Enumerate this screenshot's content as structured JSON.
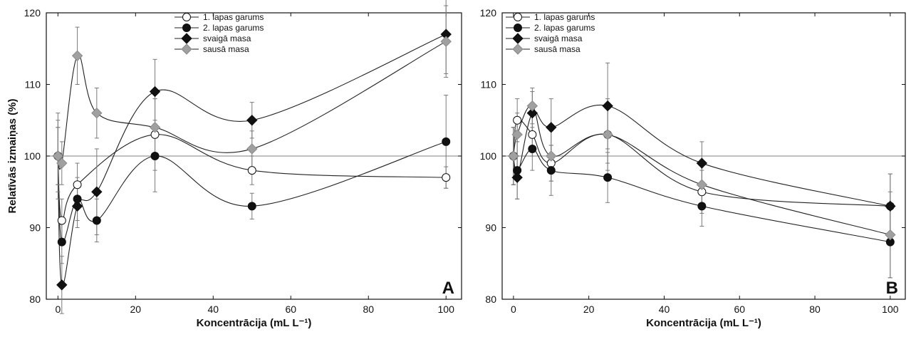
{
  "chart_data": [
    {
      "type": "scatter",
      "panel_label": "A",
      "xlabel": "Koncentrācija (mL L⁻¹)",
      "ylabel": "Relatīvās izmaiņas (%)",
      "xlim": [
        -3,
        104
      ],
      "ylim": [
        80,
        120
      ],
      "xticks": [
        0,
        20,
        40,
        60,
        80,
        100
      ],
      "yticks": [
        80,
        90,
        100,
        110,
        120
      ],
      "reference_line": 100,
      "legend_position": "top-center",
      "series": [
        {
          "name": "1. lapas garums",
          "marker": "circle-open",
          "color": "#ffffff",
          "x": [
            0,
            1,
            5,
            25,
            50,
            100
          ],
          "y": [
            100,
            91,
            96,
            103,
            98,
            97
          ],
          "err": [
            4,
            3,
            3,
            5,
            2,
            1.5
          ]
        },
        {
          "name": "2. lapas garums",
          "marker": "circle",
          "color": "#111111",
          "x": [
            0,
            1,
            5,
            10,
            25,
            50,
            100
          ],
          "y": [
            100,
            88,
            94,
            91,
            100,
            93,
            102
          ],
          "err": [
            4,
            3,
            3,
            3,
            5,
            1.8,
            6.5
          ]
        },
        {
          "name": "svaigā masa",
          "marker": "diamond",
          "color": "#111111",
          "x": [
            0,
            1,
            5,
            10,
            25,
            50,
            100
          ],
          "y": [
            100,
            82,
            93,
            95,
            109,
            105,
            117
          ],
          "err": [
            6,
            4,
            3,
            6,
            4.5,
            2.5,
            5.5
          ]
        },
        {
          "name": "sausā masa",
          "marker": "diamond",
          "color": "#a0a0a0",
          "x": [
            0,
            1,
            5,
            10,
            25,
            50,
            100
          ],
          "y": [
            100,
            99,
            114,
            106,
            104,
            101,
            116
          ],
          "err": [
            5,
            3,
            4,
            3.5,
            4,
            2.5,
            5
          ]
        }
      ]
    },
    {
      "type": "scatter",
      "panel_label": "B",
      "xlabel": "Koncentrācija (mL L⁻¹)",
      "ylabel": "",
      "xlim": [
        -3,
        104
      ],
      "ylim": [
        80,
        120
      ],
      "xticks": [
        0,
        20,
        40,
        60,
        80,
        100
      ],
      "yticks": [
        80,
        90,
        100,
        110,
        120
      ],
      "reference_line": 100,
      "legend_position": "top-left",
      "series": [
        {
          "name": "1. lapas garums",
          "marker": "circle-open",
          "color": "#ffffff",
          "x": [
            0,
            1,
            5,
            10,
            25,
            50,
            100
          ],
          "y": [
            100,
            105,
            103,
            99,
            103,
            95,
            93
          ],
          "err": [
            4,
            3,
            3,
            2.5,
            5,
            3,
            4.5
          ]
        },
        {
          "name": "2. lapas garums",
          "marker": "circle",
          "color": "#111111",
          "x": [
            0,
            1,
            5,
            10,
            25,
            50,
            100
          ],
          "y": [
            100,
            98,
            101,
            98,
            97,
            93,
            88
          ],
          "err": [
            4,
            4,
            3,
            3.5,
            3.5,
            2.8,
            5
          ]
        },
        {
          "name": "svaigā masa",
          "marker": "diamond",
          "color": "#111111",
          "x": [
            0,
            1,
            5,
            10,
            25,
            50,
            100
          ],
          "y": [
            100,
            97,
            106,
            104,
            107,
            99,
            93
          ],
          "err": [
            4,
            3,
            3,
            4,
            6,
            3,
            4.5
          ]
        },
        {
          "name": "sausā masa",
          "marker": "diamond",
          "color": "#a0a0a0",
          "x": [
            0,
            1,
            5,
            10,
            25,
            50,
            100
          ],
          "y": [
            100,
            103,
            107,
            100,
            103,
            96,
            89
          ],
          "err": [
            4,
            3,
            2.5,
            3.5,
            4,
            3,
            6
          ]
        }
      ]
    }
  ]
}
